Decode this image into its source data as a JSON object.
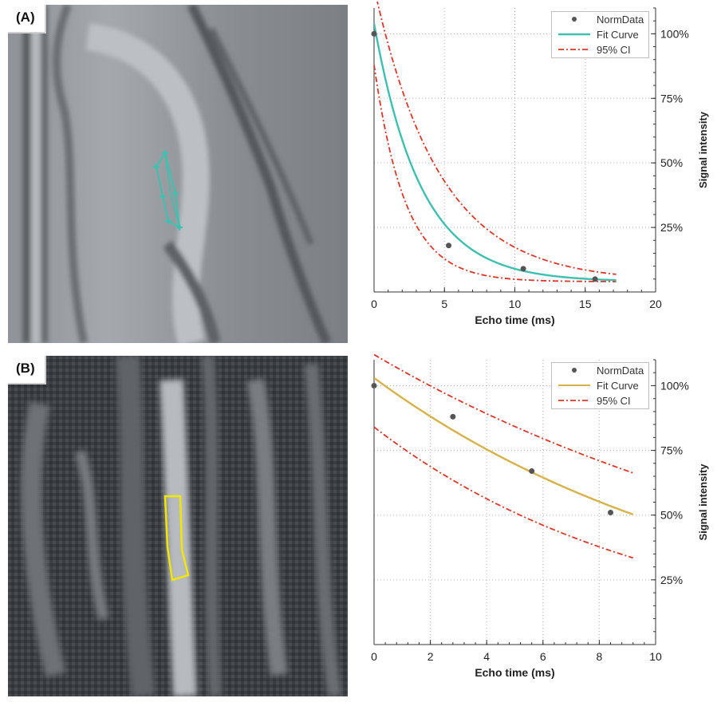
{
  "panels": [
    {
      "label": "(A)",
      "roi_color": "#3ec1b0",
      "chart_data": {
        "type": "line",
        "xlabel": "Echo time (ms)",
        "ylabel": "Signal intensity",
        "xlim": [
          0,
          20
        ],
        "ylim": [
          0,
          1.1
        ],
        "x_ticks": [
          0,
          5,
          10,
          15,
          20
        ],
        "y_ticks": [
          0.25,
          0.5,
          0.75,
          1.0
        ],
        "y_tick_labels": [
          "25%",
          "50%",
          "75%",
          "100%"
        ],
        "grid": true,
        "legend_position": "top-right",
        "series": [
          {
            "name": "NormData",
            "kind": "points",
            "color": "#555555",
            "x": [
              0,
              5.3,
              10.6,
              15.7
            ],
            "y": [
              1.0,
              0.18,
              0.09,
              0.05
            ]
          },
          {
            "name": "Fit Curve",
            "kind": "line",
            "color": "#3fbfae",
            "model": {
              "a": 1.0,
              "b": 0.3,
              "c": 0.04
            },
            "x_range": [
              0,
              17.2
            ]
          },
          {
            "name": "95% CI",
            "kind": "band",
            "color": "#d9372b",
            "upper": {
              "a": 1.14,
              "b": 0.215,
              "c": 0.04
            },
            "lower": {
              "a": 0.84,
              "b": 0.45,
              "c": 0.04
            },
            "x_range": [
              0,
              17.2
            ]
          }
        ]
      }
    },
    {
      "label": "(B)",
      "roi_color": "#f2e600",
      "chart_data": {
        "type": "line",
        "xlabel": "Echo time (ms)",
        "ylabel": "Signal intensity",
        "xlim": [
          0,
          10
        ],
        "ylim": [
          0,
          1.1
        ],
        "x_ticks": [
          0,
          2,
          4,
          6,
          8,
          10
        ],
        "y_ticks": [
          0.25,
          0.5,
          0.75,
          1.0
        ],
        "y_tick_labels": [
          "25%",
          "50%",
          "75%",
          "100%"
        ],
        "grid": true,
        "legend_position": "top-right",
        "series": [
          {
            "name": "NormData",
            "kind": "points",
            "color": "#555555",
            "x": [
              0,
              2.8,
              5.6,
              8.4
            ],
            "y": [
              1.0,
              0.88,
              0.67,
              0.51
            ]
          },
          {
            "name": "Fit Curve",
            "kind": "line",
            "color": "#d6b24a",
            "model": {
              "a": 1.03,
              "b": 0.078,
              "c": 0
            },
            "x_range": [
              0,
              9.2
            ]
          },
          {
            "name": "95% CI",
            "kind": "band",
            "color": "#d9372b",
            "upper": {
              "a": 1.12,
              "b": 0.057,
              "c": 0
            },
            "lower": {
              "a": 0.84,
              "b": 0.1,
              "c": 0
            },
            "x_range": [
              0,
              9.2
            ]
          }
        ]
      }
    }
  ]
}
